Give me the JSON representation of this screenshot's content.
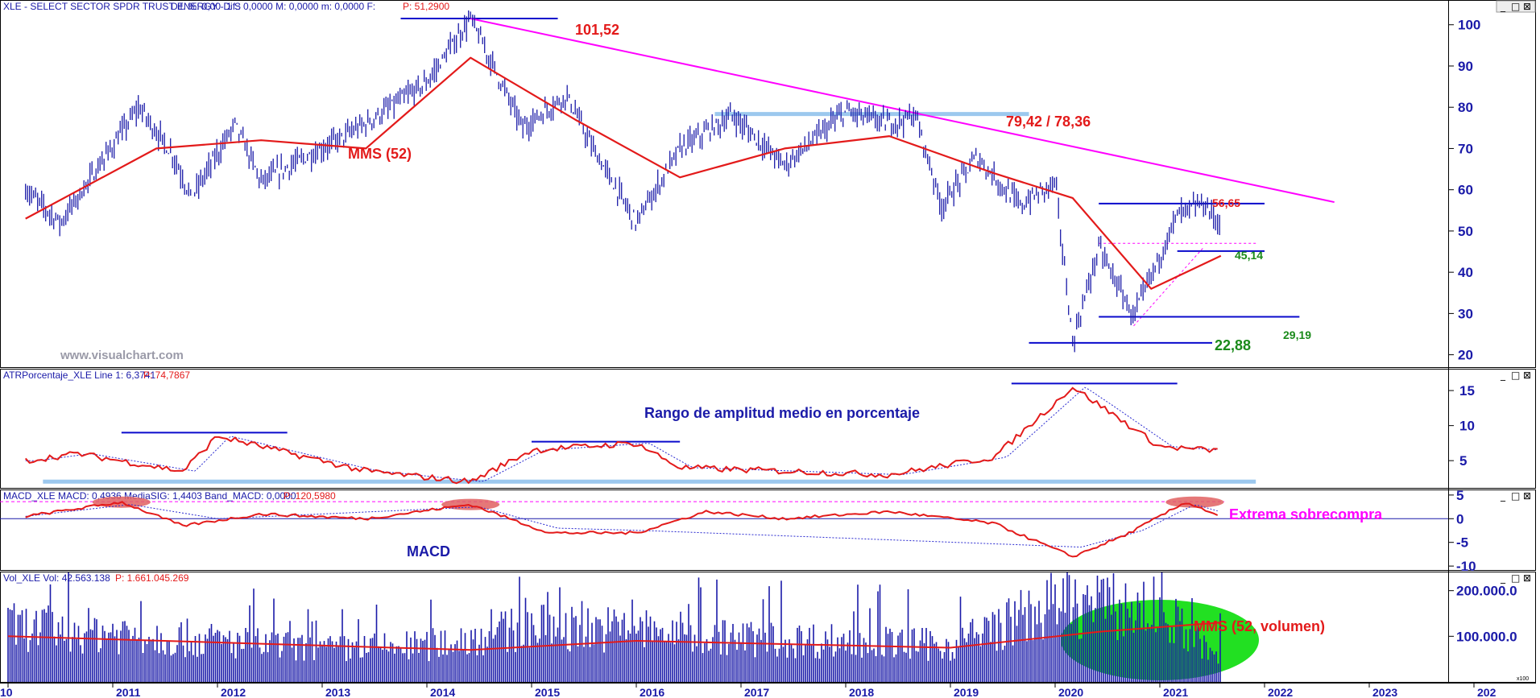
{
  "window_buttons": [
    "_",
    "□",
    "⊠"
  ],
  "watermark": "www.visualchart.com",
  "x_axis_years": [
    "10",
    "2011",
    "2012",
    "2013",
    "2014",
    "2015",
    "2016",
    "2017",
    "2018",
    "2019",
    "2020",
    "2021",
    "2022",
    "2023",
    "202"
  ],
  "panels": {
    "price": {
      "header": {
        "name": "XLE - SELECT SECTOR SPDR TRUST ENERGY - 1 S",
        "info": "Dif. %: 0,00  Dif.: 0,0000  M: 0,0000  m: 0,0000  F:",
        "last": "P: 51,2900"
      },
      "y_ticks": [
        "100",
        "90",
        "80",
        "70",
        "60",
        "50",
        "40",
        "30",
        "20"
      ],
      "annotations": {
        "high": "101,52",
        "resistance": "79,42 / 78,36",
        "mms": "MMS (52)",
        "recent_high": "56,65",
        "support_mid": "45,14",
        "support_low": "29,19",
        "low": "22,88"
      }
    },
    "atr": {
      "header": {
        "name": "ATRPorcentaje_XLE  Line 1: 6,3741",
        "last": "P: 74,7867"
      },
      "y_ticks": [
        "15",
        "10",
        "5"
      ],
      "annotation": "Rango de amplitud medio en porcentaje"
    },
    "macd": {
      "header": {
        "name": "MACD_XLE  MACD: 0,4936  MediaSIG: 1,4403  Band_MACD: 0,0000",
        "last": "P: 120,5980"
      },
      "y_ticks": [
        "5",
        "0",
        "-5",
        "-10"
      ],
      "label": "MACD",
      "annotation": "Extrema sobrecompra"
    },
    "volume": {
      "header": {
        "name": "Vol_XLE  Vol: 42.563.138",
        "last": "P: 1.661.045.269"
      },
      "y_ticks": [
        "200.000.0",
        "100.000.0"
      ],
      "annotation": "MMS (52, volumen)",
      "scale_badge": "x100"
    }
  },
  "colors": {
    "price_bars": "#1a1aa8",
    "ma": "#e31a1a",
    "trend": "#ff00ff",
    "level": "#0a0acc",
    "light_level": "#9cc8ee",
    "volume_ellipse": "#22e022",
    "overbought": "#e06060"
  },
  "chart_data": [
    {
      "type": "line",
      "title": "XLE - SELECT SECTOR SPDR TRUST ENERGY - 1 S",
      "x_range": [
        "2010",
        "2022-09"
      ],
      "ylim": [
        17,
        106
      ],
      "series": [
        {
          "name": "",
          "x": [
            "2010-03",
            "2010-07",
            "2011-04",
            "2011-08",
            "2011-10",
            "2012-03",
            "2012-06",
            "2013-01",
            "2013-06",
            "2014-01",
            "2014-06",
            "2014-12",
            "2015-05",
            "2015-08",
            "2016-01",
            "2016-06",
            "2016-12",
            "2017-06",
            "2018-01",
            "2018-06",
            "2018-09",
            "2018-12",
            "2019-04",
            "2019-09",
            "2020-01",
            "2020-03",
            "2020-06",
            "2020-10",
            "2021-03",
            "2021-06",
            "2021-08"
          ],
          "values": [
            60,
            52,
            80,
            68,
            58,
            76,
            62,
            70,
            76,
            86,
            101.52,
            75,
            83,
            70,
            52,
            70,
            78,
            66,
            79,
            76,
            78,
            56,
            68,
            56,
            62,
            22.88,
            46,
            29.19,
            54,
            56.65,
            51.29
          ]
        },
        {
          "name": "MMS (52)",
          "x": [
            "2010-03",
            "2011-06",
            "2012-06",
            "2013-06",
            "2014-06",
            "2015-06",
            "2016-06",
            "2017-06",
            "2018-06",
            "2019-06",
            "2020-03",
            "2020-12",
            "2021-08"
          ],
          "values": [
            53,
            70,
            72,
            70,
            92,
            77,
            63,
            70,
            73,
            64,
            58,
            36,
            44
          ]
        }
      ],
      "levels": [
        101.52,
        78.36,
        79.42,
        56.65,
        45.14,
        29.19,
        22.88
      ]
    },
    {
      "type": "line",
      "title": "ATRPorcentaje_XLE",
      "ylim": [
        1,
        18
      ],
      "series": [
        {
          "name": "Line 1",
          "x": [
            "2010-03",
            "2010-09",
            "2011-09",
            "2012-01",
            "2013-06",
            "2014-06",
            "2015-01",
            "2016-01",
            "2016-06",
            "2017-06",
            "2018-06",
            "2019-06",
            "2020-03",
            "2020-06",
            "2021-01",
            "2021-08"
          ],
          "values": [
            5,
            6,
            3.5,
            8.5,
            3.5,
            2,
            6.5,
            7.5,
            4,
            3.5,
            3,
            5.5,
            15.5,
            13,
            7,
            6.37
          ]
        }
      ]
    },
    {
      "type": "line",
      "title": "MACD_XLE",
      "ylim": [
        -11,
        6
      ],
      "series": [
        {
          "name": "MACD",
          "x": [
            "2010-03",
            "2011-02",
            "2011-09",
            "2012-06",
            "2013-06",
            "2014-06",
            "2015-03",
            "2016-01",
            "2016-09",
            "2017-06",
            "2018-06",
            "2019-06",
            "2020-03",
            "2020-09",
            "2021-04",
            "2021-08"
          ],
          "values": [
            0.5,
            3.5,
            -1.5,
            1,
            0,
            3,
            -3,
            -3,
            1.5,
            0,
            1.5,
            -1,
            -8,
            -3.5,
            3.5,
            0.49
          ]
        },
        {
          "name": "MediaSIG",
          "x": [
            "2010-03",
            "2011-03",
            "2012-01",
            "2014-07",
            "2015-04",
            "2016-02",
            "2020-04",
            "2020-11",
            "2021-05",
            "2021-08"
          ],
          "values": [
            0.5,
            3,
            0,
            2.5,
            -2,
            -2.5,
            -6,
            -2.5,
            3,
            1.44
          ]
        }
      ]
    },
    {
      "type": "bar",
      "title": "Vol_XLE",
      "ylim": [
        0,
        240000
      ],
      "series": [
        {
          "name": "Vol",
          "x": [
            "2010",
            "2011",
            "2012",
            "2013",
            "2014",
            "2015",
            "2016",
            "2017",
            "2018",
            "2019",
            "2020",
            "2021",
            "2021-08"
          ],
          "values": [
            120000,
            110000,
            90000,
            70000,
            80000,
            120000,
            115000,
            95000,
            90000,
            80000,
            170000,
            160000,
            42563
          ]
        },
        {
          "name": "MMS (52, volumen)",
          "x": [
            "2010",
            "2014-06",
            "2016",
            "2019",
            "2020-06",
            "2021-08"
          ],
          "values": [
            100000,
            70000,
            90000,
            75000,
            110000,
            130000
          ]
        }
      ]
    }
  ]
}
